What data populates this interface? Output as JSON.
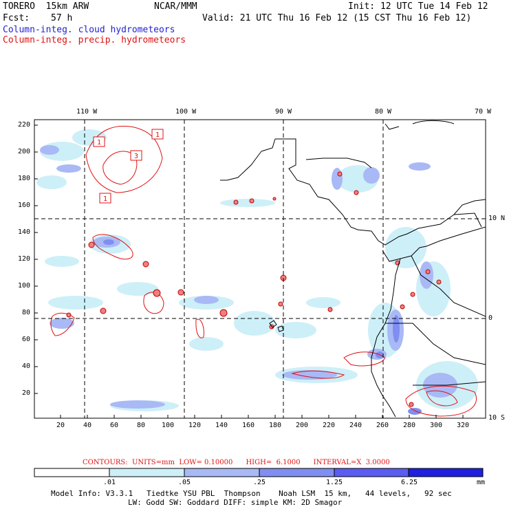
{
  "header": {
    "model": "TORERO  15km ARW",
    "org": "NCAR/MMM",
    "init": "Init: 12 UTC Tue 14 Feb 12",
    "fcst_label": "Fcst:",
    "fcst_value": "57 h",
    "valid": "Valid: 21 UTC Thu 16 Feb 12 (15 CST Thu 16 Feb 12)",
    "line_cloud": "Column-integ. cloud hydrometeors",
    "line_precip": "Column-integ. precip. hydrometeors"
  },
  "map": {
    "top_lon_labels": [
      "110 W",
      "100 W",
      "90 W",
      "80 W",
      "70 W"
    ],
    "right_lat_labels": [
      "10 N",
      "0",
      "10 S"
    ],
    "left_y_ticks": [
      "220",
      "200",
      "180",
      "160",
      "140",
      "120",
      "100",
      "80",
      "60",
      "40",
      "20"
    ],
    "bottom_x_ticks": [
      "20",
      "40",
      "60",
      "80",
      "100",
      "120",
      "140",
      "160",
      "180",
      "200",
      "220",
      "240",
      "260",
      "280",
      "300",
      "320"
    ],
    "contour_labels": [
      "1",
      "1",
      "3",
      "1"
    ],
    "colors": {
      "cloud_light": "#cdeff8",
      "cloud_mid": "#a9b9f5",
      "cloud_dark": "#7f8ef0",
      "precip": "#e01010",
      "coast": "#000000"
    }
  },
  "contour_info": "CONTOURS:  UNITS=mm  LOW= 0.10000      HIGH=  6.1000      INTERVAL=X  3.0000",
  "colorbar": {
    "labels": [
      ".01",
      ".05",
      ".25",
      "1.25",
      "6.25"
    ],
    "unit": "mm",
    "colors": [
      "#ffffff",
      "#cdeff8",
      "#a9b9f5",
      "#7f8ef0",
      "#5a5df0",
      "#2020e0"
    ]
  },
  "footer": {
    "line1": "Model Info: V3.3.1   Tiedtke YSU PBL  Thompson    Noah LSM  15 km,   44 levels,   92 sec",
    "line2": "LW: Godd SW: Goddard DIFF: simple KM: 2D Smagor"
  }
}
